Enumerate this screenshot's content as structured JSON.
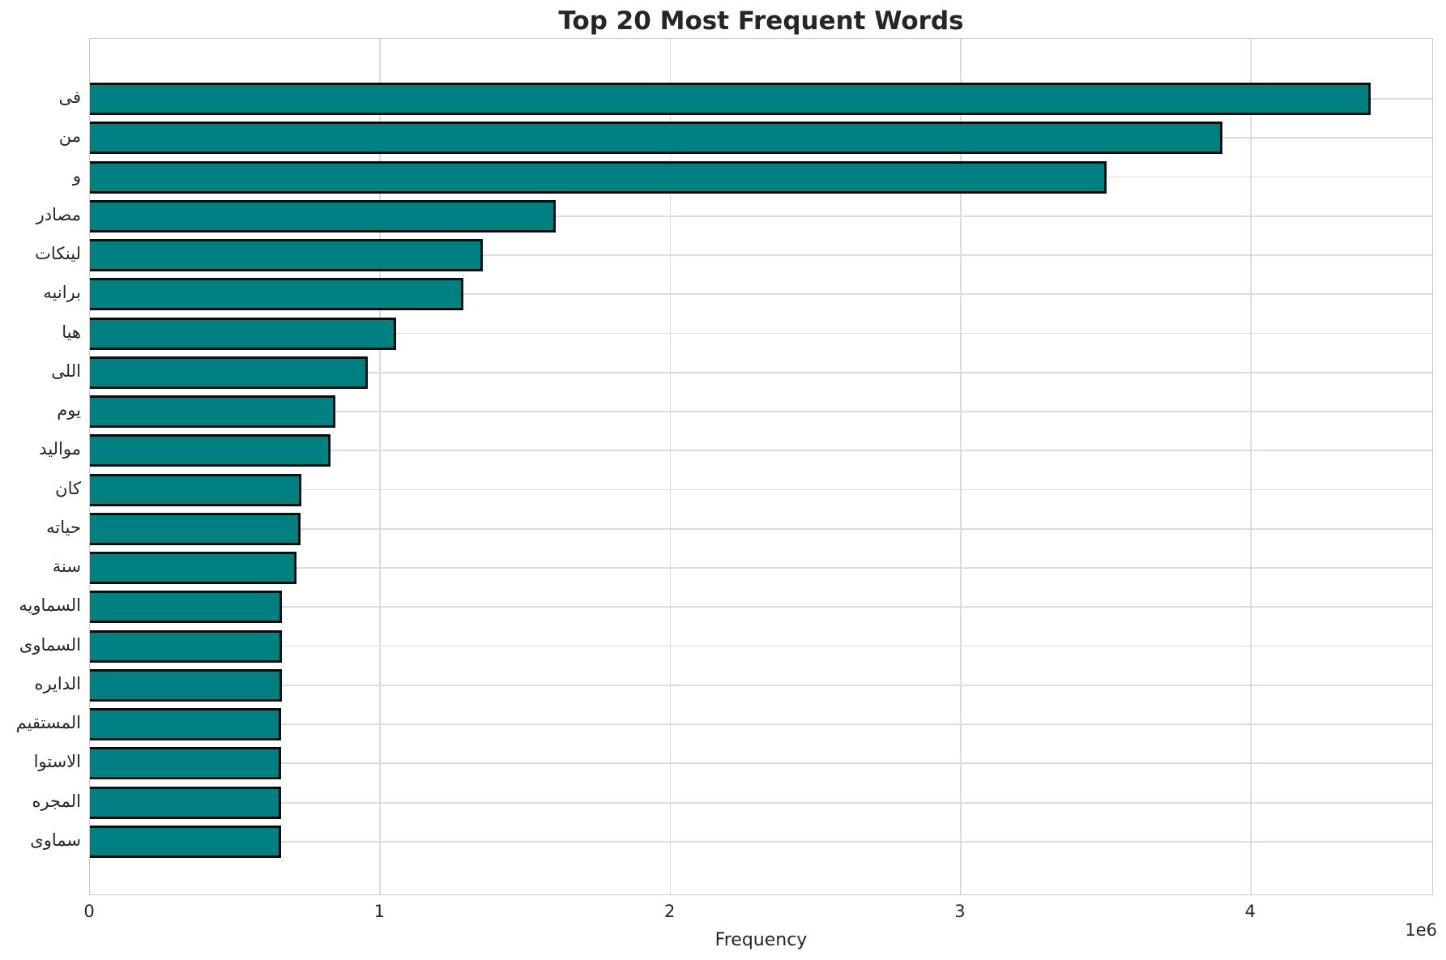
{
  "title": "Top 20 Most Frequent Words",
  "chart_data": {
    "type": "bar",
    "orientation": "horizontal",
    "title": "Top 20 Most Frequent Words",
    "xlabel": "Frequency",
    "ylabel": "",
    "offset_text": "1e6",
    "categories": [
      "فى",
      "من",
      "و",
      "مصادر",
      "لينكات",
      "برانيه",
      "هيا",
      "اللى",
      "يوم",
      "مواليد",
      "كان",
      "حياته",
      "سنة",
      "السماويه",
      "السماوى",
      "الدايره",
      "المستقيم",
      "الاستوا",
      "المجره",
      "سماوى"
    ],
    "values": [
      4420000,
      3910000,
      3510000,
      1613000,
      1362000,
      1296000,
      1063000,
      966000,
      855000,
      838000,
      737000,
      734000,
      721000,
      671000,
      670000,
      669000,
      668000,
      668000,
      667000,
      666000
    ],
    "xlim": [
      0,
      4630000
    ],
    "x_ticks": [
      0,
      1000000,
      2000000,
      3000000,
      4000000
    ],
    "x_tick_labels": [
      "0",
      "1",
      "2",
      "3",
      "4"
    ],
    "grid": true,
    "legend": "none",
    "bar_color": "#008080",
    "bar_edge_color": "#0d0d0d",
    "grid_color": "#dcdcdc",
    "spine_color": "#cccccc",
    "text_color": "#262626",
    "background_color": "#ffffff"
  }
}
